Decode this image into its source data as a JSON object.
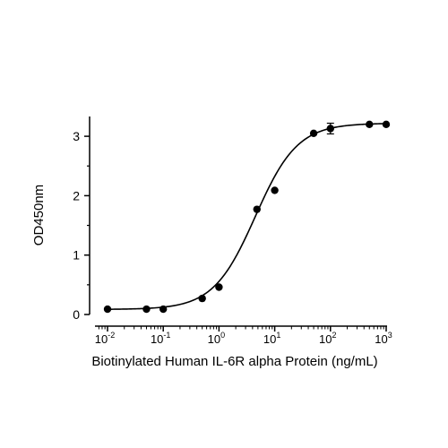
{
  "chart_data": {
    "type": "scatter",
    "title": "",
    "xlabel": "Biotinylated Human IL-6R alpha Protein (ng/mL)",
    "ylabel": "OD450nm",
    "x_scale": "log10",
    "xlim": [
      0.007,
      1000
    ],
    "ylim": [
      0,
      3.3
    ],
    "x_ticks": [
      {
        "base": "10",
        "exp": "-2"
      },
      {
        "base": "10",
        "exp": "-1"
      },
      {
        "base": "10",
        "exp": "0"
      },
      {
        "base": "10",
        "exp": "1"
      },
      {
        "base": "10",
        "exp": "2"
      },
      {
        "base": "10",
        "exp": "3"
      }
    ],
    "y_ticks": [
      "0",
      "1",
      "2",
      "3"
    ],
    "grid": false,
    "legend": "none",
    "series": [
      {
        "points": [
          {
            "x": 0.01,
            "y": 0.09
          },
          {
            "x": 0.05,
            "y": 0.09
          },
          {
            "x": 0.1,
            "y": 0.09
          },
          {
            "x": 0.5,
            "y": 0.27
          },
          {
            "x": 1,
            "y": 0.46
          },
          {
            "x": 4.8,
            "y": 1.77
          },
          {
            "x": 10,
            "y": 2.09
          },
          {
            "x": 50,
            "y": 3.05
          },
          {
            "x": 100,
            "y": 3.13,
            "err": 0.09
          },
          {
            "x": 500,
            "y": 3.2
          },
          {
            "x": 1000,
            "y": 3.2
          }
        ]
      }
    ],
    "fit_curve": {
      "model": "4PL",
      "bottom": 0.085,
      "top": 3.22,
      "ec50": 4.5,
      "hill": 1.15
    }
  }
}
